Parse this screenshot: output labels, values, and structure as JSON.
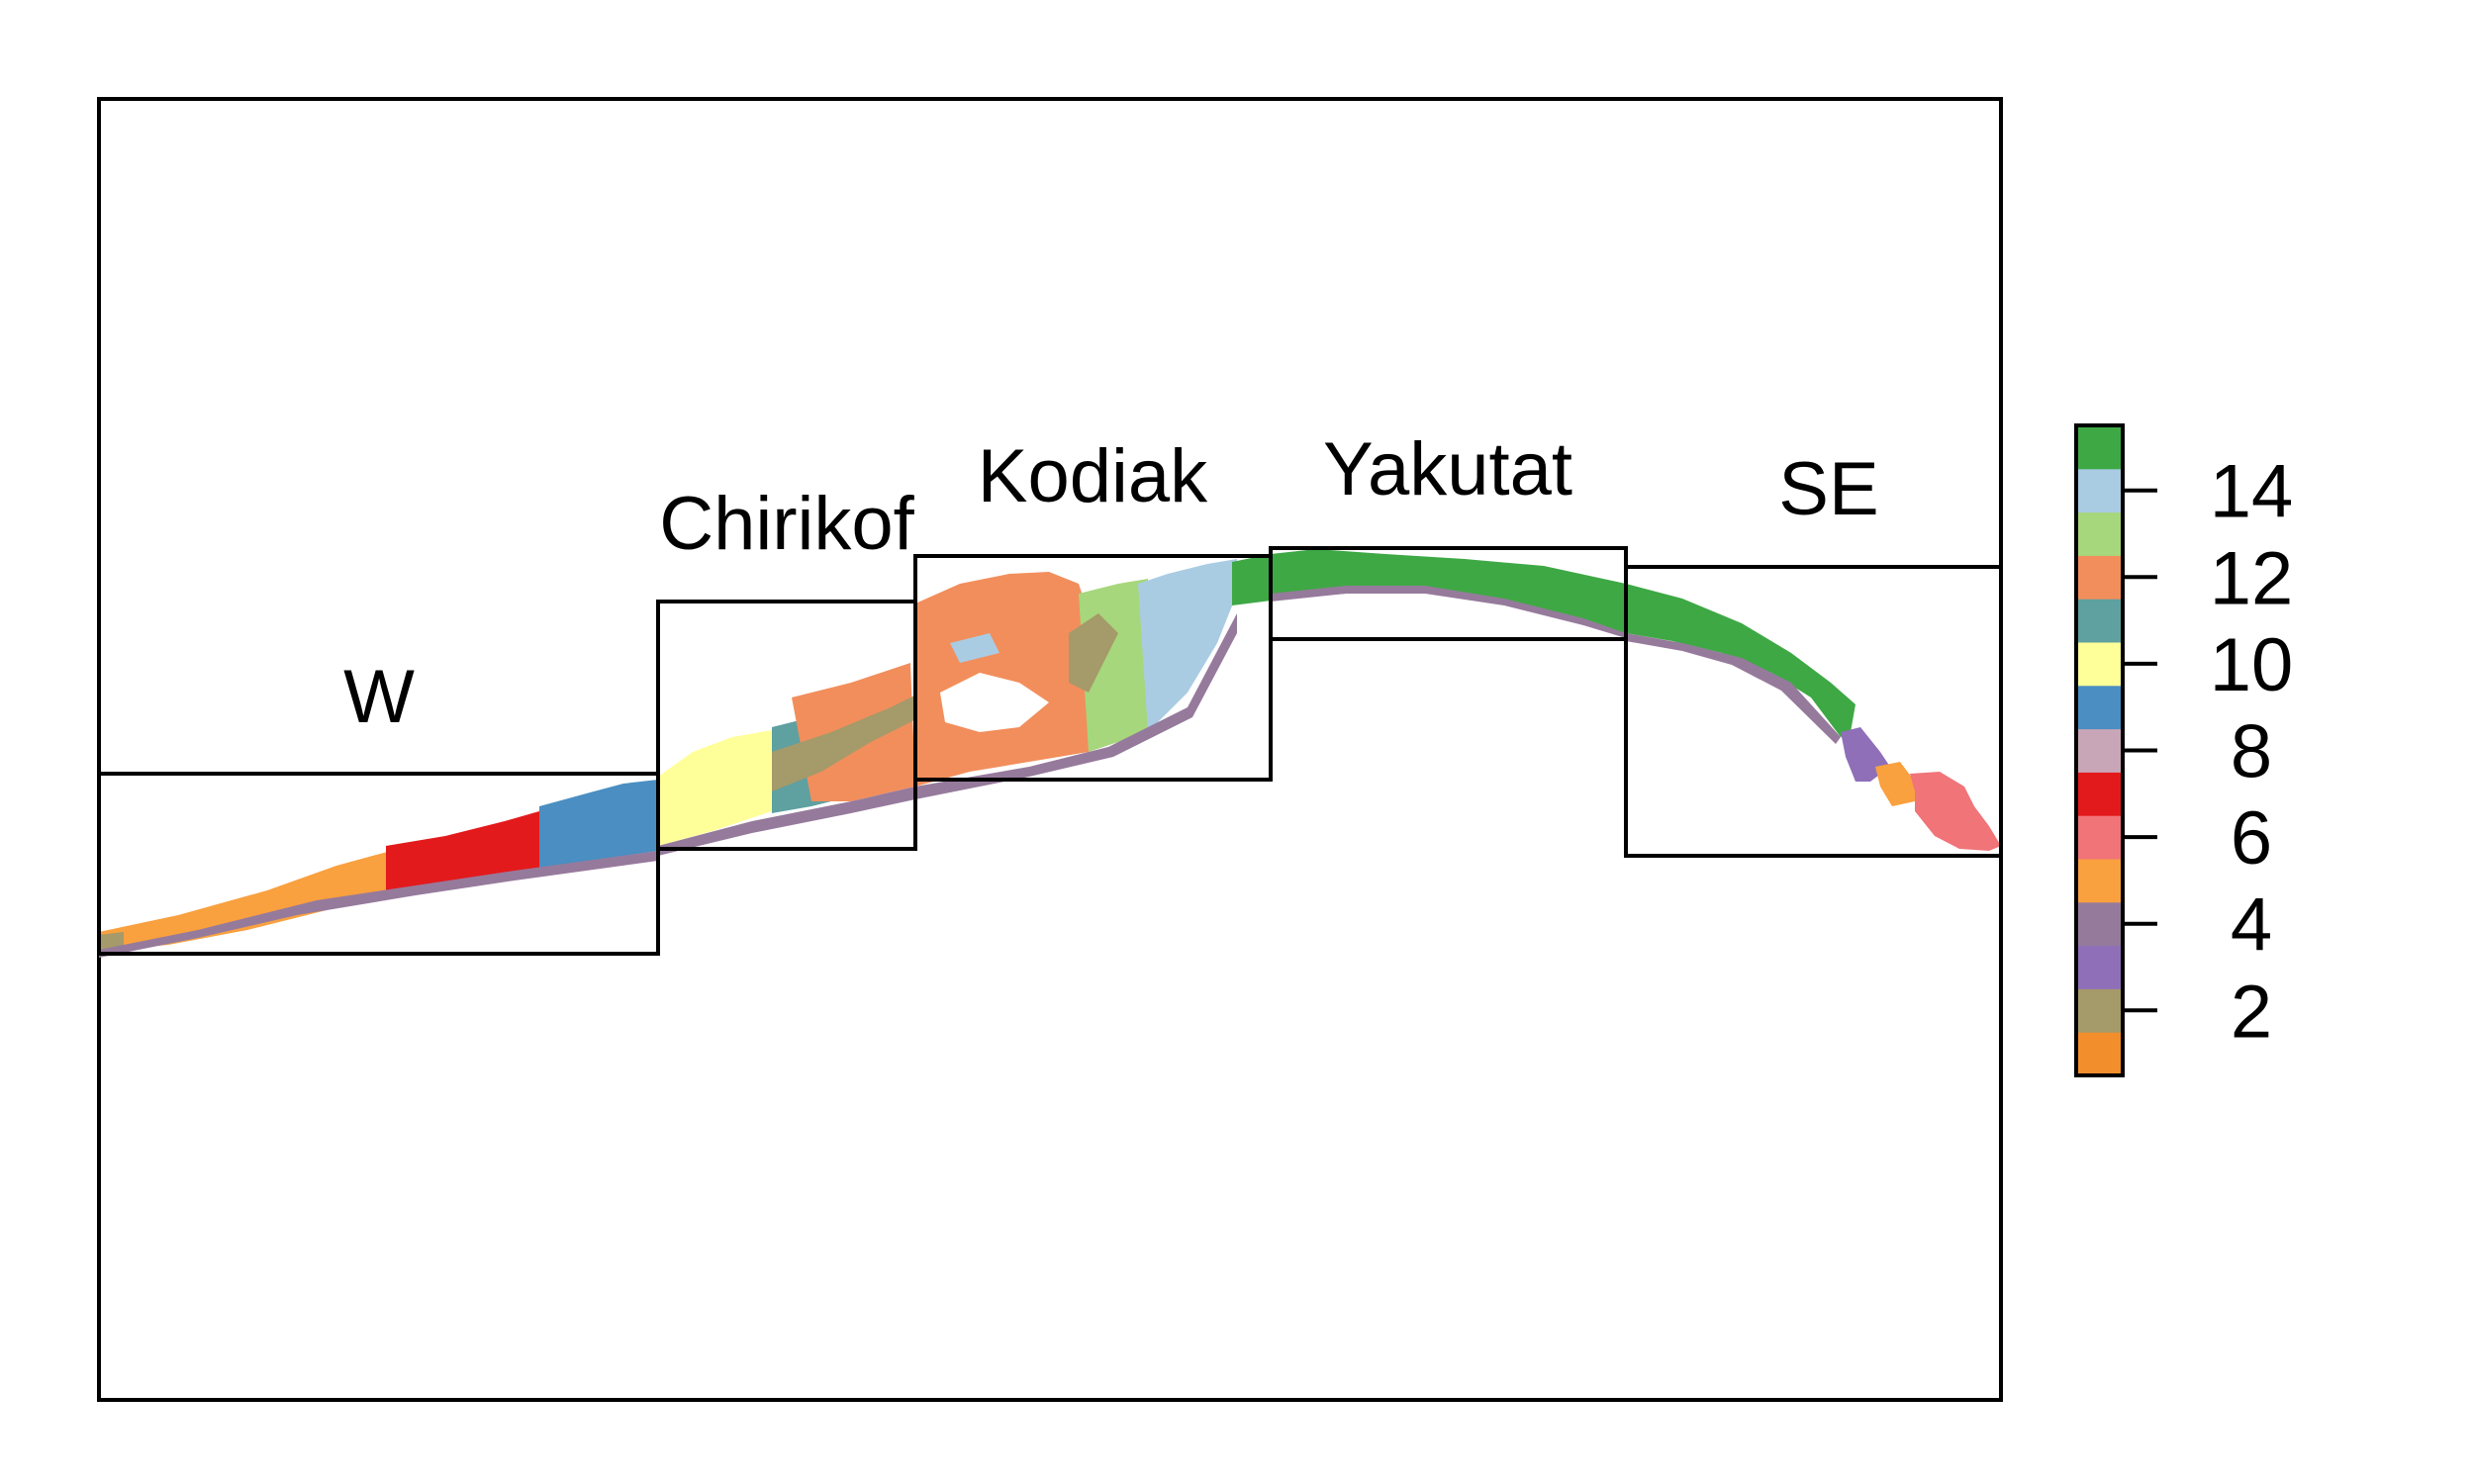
{
  "map": {
    "regions": [
      {
        "id": "w",
        "label": "W"
      },
      {
        "id": "chirikof",
        "label": "Chirikof"
      },
      {
        "id": "kodiak",
        "label": "Kodiak"
      },
      {
        "id": "yakutat",
        "label": "Yakutat"
      },
      {
        "id": "se",
        "label": "SE"
      }
    ]
  },
  "legend": {
    "classes": [
      {
        "value": 1,
        "color": "#f28e2b"
      },
      {
        "value": 2,
        "color": "#a59a69"
      },
      {
        "value": 3,
        "color": "#8f6fb8"
      },
      {
        "value": 4,
        "color": "#967a9c"
      },
      {
        "value": 5,
        "color": "#f9a03f"
      },
      {
        "value": 6,
        "color": "#f07478"
      },
      {
        "value": 7,
        "color": "#e31a1c"
      },
      {
        "value": 8,
        "color": "#c9a6b7"
      },
      {
        "value": 9,
        "color": "#4a8ec2"
      },
      {
        "value": 10,
        "color": "#ffff99"
      },
      {
        "value": 11,
        "color": "#5fa0a0"
      },
      {
        "value": 12,
        "color": "#f28e5c"
      },
      {
        "value": 13,
        "color": "#a6d77c"
      },
      {
        "value": 14,
        "color": "#a9cce3"
      },
      {
        "value": 15,
        "color": "#3ea845"
      }
    ],
    "ticks": [
      "2",
      "4",
      "6",
      "8",
      "10",
      "12",
      "14"
    ]
  }
}
